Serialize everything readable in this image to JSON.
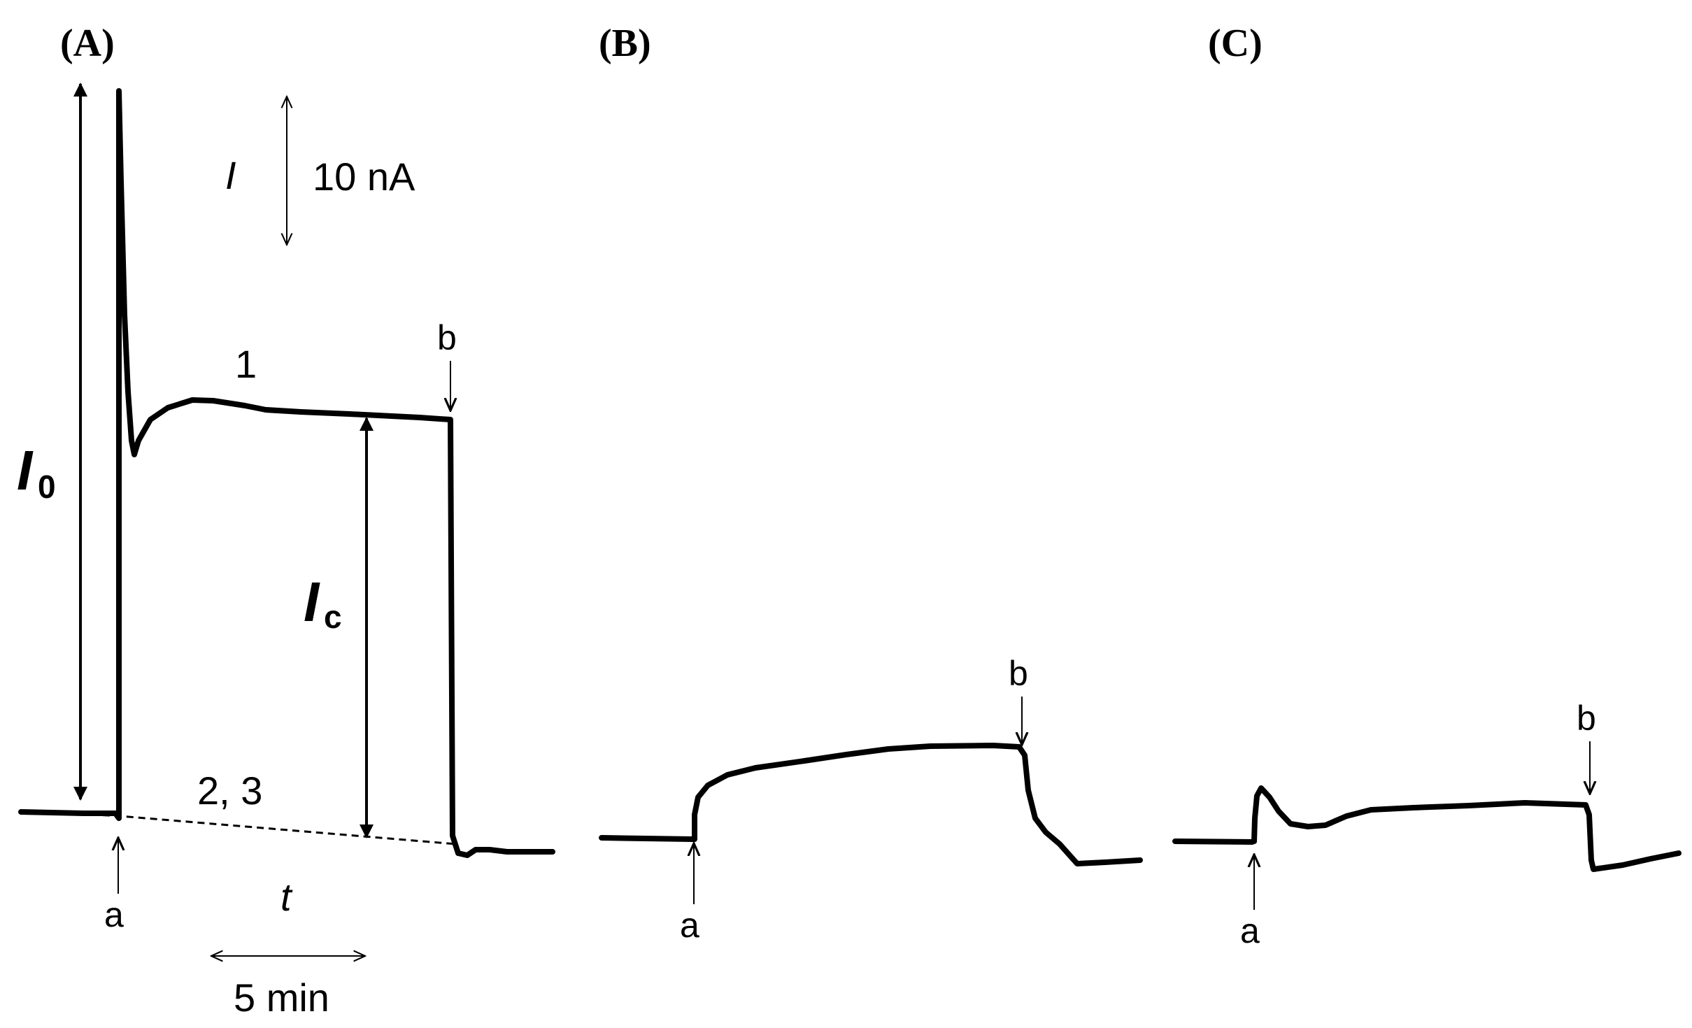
{
  "chart_data": [
    {
      "type": "line",
      "panel": "(A)",
      "series": [
        {
          "name": "1",
          "label": "1"
        },
        {
          "name": "2, 3",
          "label": "2, 3"
        }
      ],
      "scale_bars": {
        "current": {
          "symbol": "I",
          "value": "10 nA"
        },
        "time": {
          "symbol": "t",
          "value": "5 min"
        }
      },
      "annotations": {
        "I0": {
          "main": "I",
          "sub": "0"
        },
        "Ic": {
          "main": "I",
          "sub": "c"
        },
        "marker_a": "a",
        "marker_b": "b"
      }
    },
    {
      "type": "line",
      "panel": "(B)",
      "annotations": {
        "marker_a": "a",
        "marker_b": "b"
      }
    },
    {
      "type": "line",
      "panel": "(C)",
      "annotations": {
        "marker_a": "a",
        "marker_b": "b"
      }
    }
  ],
  "colors": {
    "trace": "#000000",
    "background": "#ffffff"
  }
}
